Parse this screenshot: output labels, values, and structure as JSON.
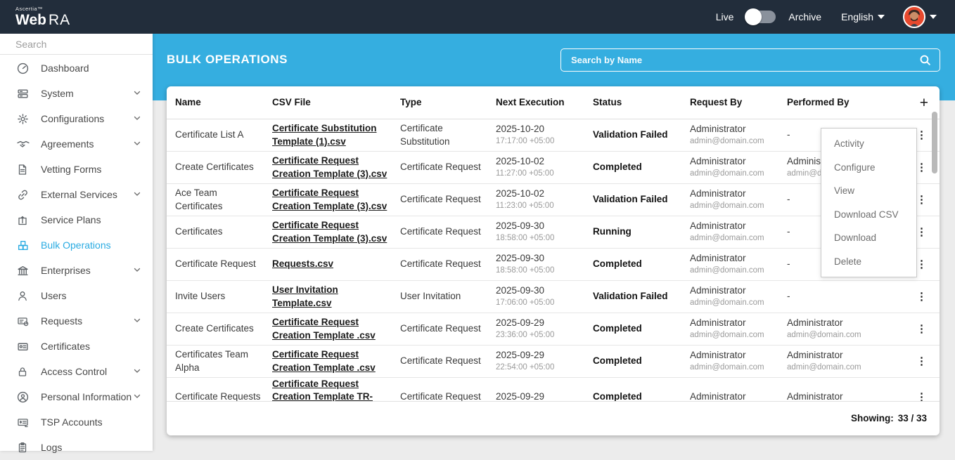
{
  "brand": {
    "company": "Ascertia™",
    "product_web": "Web",
    "product_ra": "RA"
  },
  "topbar": {
    "live_label": "Live",
    "archive_label": "Archive",
    "language": "English"
  },
  "sidebar": {
    "search_placeholder": "Search",
    "items": [
      {
        "label": "Dashboard",
        "icon": "gauge-icon",
        "expandable": false,
        "active": false
      },
      {
        "label": "System",
        "icon": "server-icon",
        "expandable": true,
        "active": false
      },
      {
        "label": "Configurations",
        "icon": "gear-icon",
        "expandable": true,
        "active": false
      },
      {
        "label": "Agreements",
        "icon": "handshake-icon",
        "expandable": true,
        "active": false
      },
      {
        "label": "Vetting Forms",
        "icon": "document-icon",
        "expandable": false,
        "active": false
      },
      {
        "label": "External Services",
        "icon": "link-icon",
        "expandable": true,
        "active": false
      },
      {
        "label": "Service Plans",
        "icon": "box-up-icon",
        "expandable": false,
        "active": false
      },
      {
        "label": "Bulk Operations",
        "icon": "packages-icon",
        "expandable": false,
        "active": true
      },
      {
        "label": "Enterprises",
        "icon": "bank-icon",
        "expandable": true,
        "active": false
      },
      {
        "label": "Users",
        "icon": "user-icon",
        "expandable": false,
        "active": false
      },
      {
        "label": "Requests",
        "icon": "request-card-icon",
        "expandable": true,
        "active": false
      },
      {
        "label": "Certificates",
        "icon": "certificate-card-icon",
        "expandable": false,
        "active": false
      },
      {
        "label": "Access Control",
        "icon": "lock-icon",
        "expandable": true,
        "active": false
      },
      {
        "label": "Personal Information",
        "icon": "person-circle-icon",
        "expandable": true,
        "active": false
      },
      {
        "label": "TSP Accounts",
        "icon": "id-card-icon",
        "expandable": false,
        "active": false
      },
      {
        "label": "Logs",
        "icon": "clipboard-icon",
        "expandable": false,
        "active": false
      }
    ]
  },
  "page": {
    "title": "BULK OPERATIONS",
    "search_placeholder": "Search by Name"
  },
  "table": {
    "columns": [
      "Name",
      "CSV File",
      "Type",
      "Next Execution",
      "Status",
      "Request By",
      "Performed By"
    ],
    "add_button": "+",
    "kebab_glyph": "⋮",
    "rows": [
      {
        "name": "Certificate List A",
        "csv": "Certificate Substitution Template (1).csv",
        "type": "Certificate Substitution",
        "date": "2025-10-20",
        "time": "17:17:00 +05:00",
        "status": "Validation Failed",
        "request_by": "Administrator",
        "request_by_email": "admin@domain.com",
        "performed_by": "-",
        "performed_by_email": ""
      },
      {
        "name": "Create Certificates",
        "csv": "Certificate Request Creation Template (3).csv",
        "type": "Certificate Request",
        "date": "2025-10-02",
        "time": "11:27:00 +05:00",
        "status": "Completed",
        "request_by": "Administrator",
        "request_by_email": "admin@domain.com",
        "performed_by": "Administrator",
        "performed_by_email": "admin@domain.com"
      },
      {
        "name": "Ace Team Certificates",
        "csv": "Certificate Request Creation Template (3).csv",
        "type": "Certificate Request",
        "date": "2025-10-02",
        "time": "11:23:00 +05:00",
        "status": "Validation Failed",
        "request_by": "Administrator",
        "request_by_email": "admin@domain.com",
        "performed_by": "-",
        "performed_by_email": ""
      },
      {
        "name": "Certificates",
        "csv": "Certificate Request Creation Template (3).csv",
        "type": "Certificate Request",
        "date": "2025-09-30",
        "time": "18:58:00 +05:00",
        "status": "Running",
        "request_by": "Administrator",
        "request_by_email": "admin@domain.com",
        "performed_by": "-",
        "performed_by_email": ""
      },
      {
        "name": "Certificate Request",
        "csv": "Requests.csv",
        "type": "Certificate Request",
        "date": "2025-09-30",
        "time": "18:58:00 +05:00",
        "status": "Completed",
        "request_by": "Administrator",
        "request_by_email": "admin@domain.com",
        "performed_by": "-",
        "performed_by_email": ""
      },
      {
        "name": "Invite Users",
        "csv": "User Invitation Template.csv",
        "type": "User Invitation",
        "date": "2025-09-30",
        "time": "17:06:00 +05:00",
        "status": "Validation Failed",
        "request_by": "Administrator",
        "request_by_email": "admin@domain.com",
        "performed_by": "-",
        "performed_by_email": ""
      },
      {
        "name": "Create Certificates",
        "csv": "Certificate Request Creation Template .csv",
        "type": "Certificate Request",
        "date": "2025-09-29",
        "time": "23:36:00 +05:00",
        "status": "Completed",
        "request_by": "Administrator",
        "request_by_email": "admin@domain.com",
        "performed_by": "Administrator",
        "performed_by_email": "admin@domain.com"
      },
      {
        "name": "Certificates Team Alpha",
        "csv": "Certificate Request Creation Template .csv",
        "type": "Certificate Request",
        "date": "2025-09-29",
        "time": "22:54:00 +05:00",
        "status": "Completed",
        "request_by": "Administrator",
        "request_by_email": "admin@domain.com",
        "performed_by": "Administrator",
        "performed_by_email": "admin@domain.com"
      },
      {
        "name": "Certificate Requests",
        "csv": "Certificate Request Creation Template TR-TLS-Server-",
        "type": "Certificate Request",
        "date": "2025-09-29",
        "time": "",
        "status": "Completed",
        "request_by": "Administrator",
        "request_by_email": "",
        "performed_by": "Administrator",
        "performed_by_email": ""
      }
    ],
    "showing_label": "Showing:",
    "showing_value": "33 / 33"
  },
  "context_menu": {
    "items": [
      "Activity",
      "Configure",
      "View",
      "Download CSV",
      "Download",
      "Delete"
    ]
  },
  "colors": {
    "topbar_bg": "#222D3B",
    "accent_blue": "#35AEE0",
    "active_item": "#29ABE2",
    "avatar_bg": "#E8492E"
  }
}
